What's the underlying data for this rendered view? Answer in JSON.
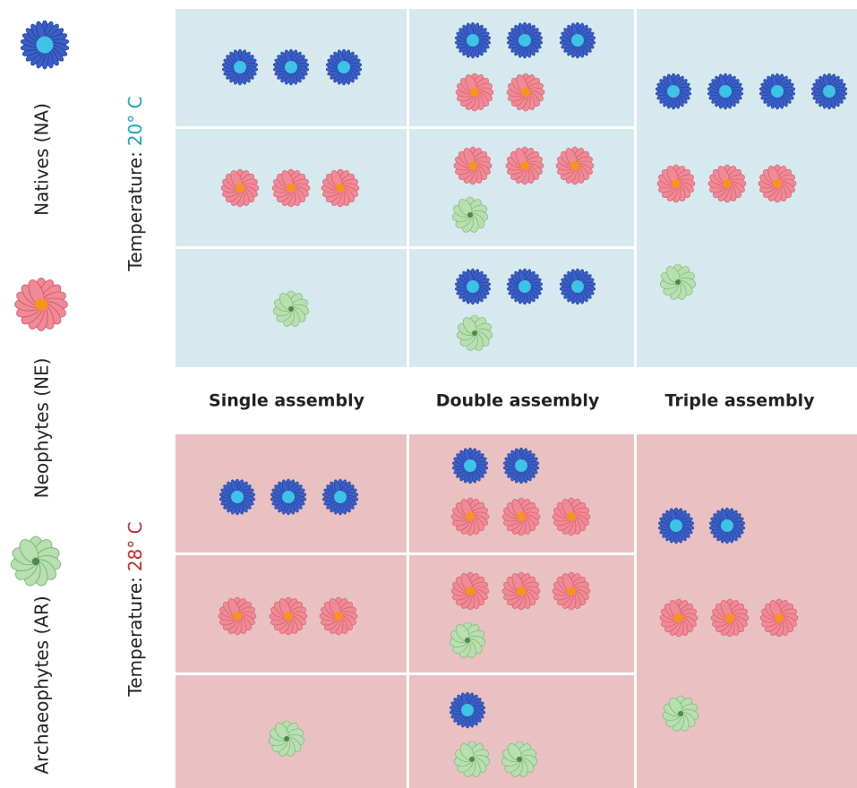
{
  "legend": {
    "items": [
      {
        "label": "Natives (NA)"
      },
      {
        "label": "Neophytes (NE)"
      },
      {
        "label": "Archaeophytes (AR)"
      }
    ]
  },
  "panels": [
    {
      "label": "Temperature:",
      "temperature": "20° C"
    },
    {
      "label": "Temperature:",
      "temperature": "28° C"
    }
  ],
  "columns": [
    "Single assembly",
    "Double assembly",
    "Triple assembly"
  ]
}
